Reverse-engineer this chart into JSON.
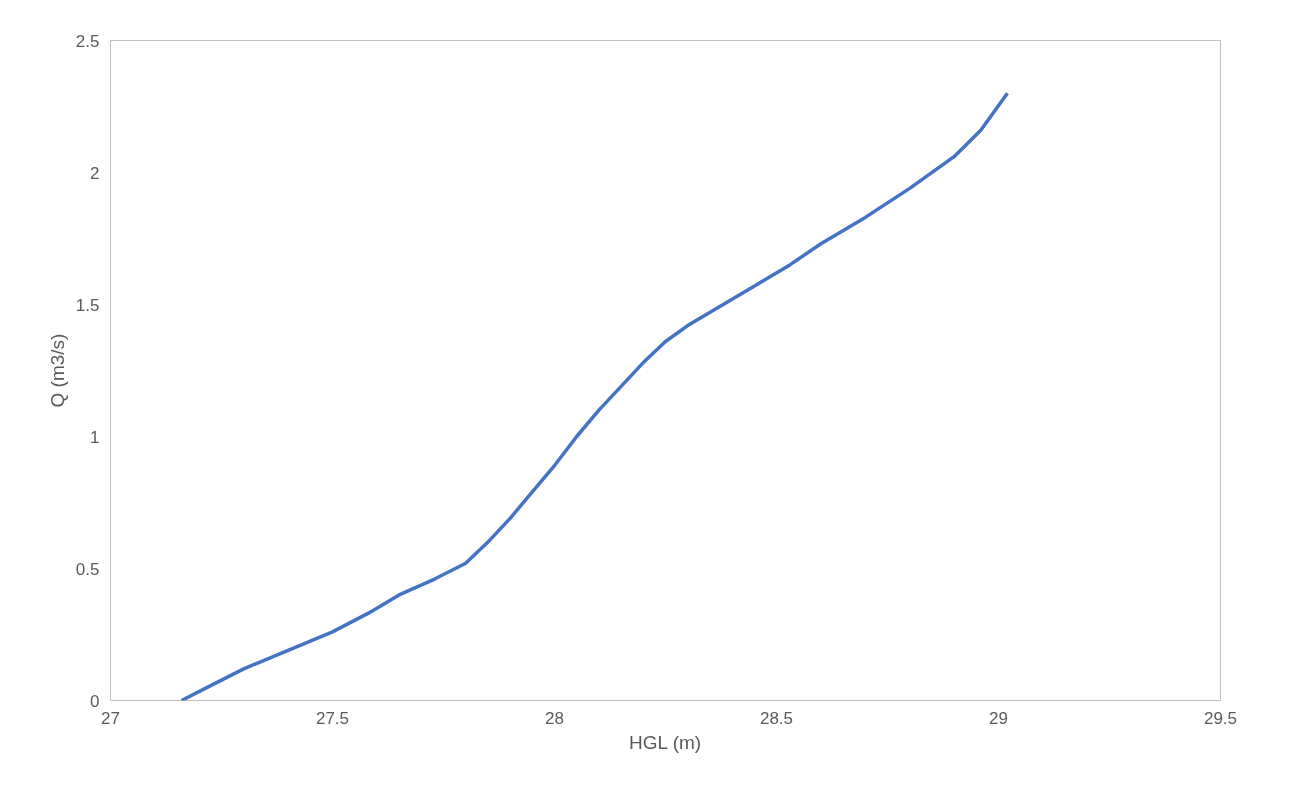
{
  "chart_data": {
    "type": "line",
    "xlabel": "HGL (m)",
    "ylabel": "Q (m3/s)",
    "x": [
      27.16,
      27.23,
      27.3,
      27.4,
      27.5,
      27.58,
      27.65,
      27.73,
      27.8,
      27.85,
      27.9,
      27.95,
      28.0,
      28.05,
      28.1,
      28.15,
      28.2,
      28.25,
      28.3,
      28.38,
      28.46,
      28.53,
      28.6,
      28.7,
      28.8,
      28.9,
      28.96,
      29.02
    ],
    "series": [
      {
        "color": "#4472c4",
        "values": [
          0,
          0.06,
          0.12,
          0.19,
          0.26,
          0.33,
          0.4,
          0.46,
          0.52,
          0.6,
          0.69,
          0.79,
          0.89,
          1.0,
          1.1,
          1.19,
          1.28,
          1.36,
          1.42,
          1.5,
          1.58,
          1.65,
          1.73,
          1.83,
          1.94,
          2.06,
          2.16,
          2.3
        ]
      }
    ],
    "xlim": [
      27,
      29.5
    ],
    "xticks": [
      27,
      27.5,
      28,
      28.5,
      29,
      29.5
    ],
    "ylim": [
      0,
      2.5
    ],
    "yticks": [
      0,
      0.5,
      1,
      1.5,
      2,
      2.5
    ],
    "marker": "none",
    "line_style": "solid"
  }
}
